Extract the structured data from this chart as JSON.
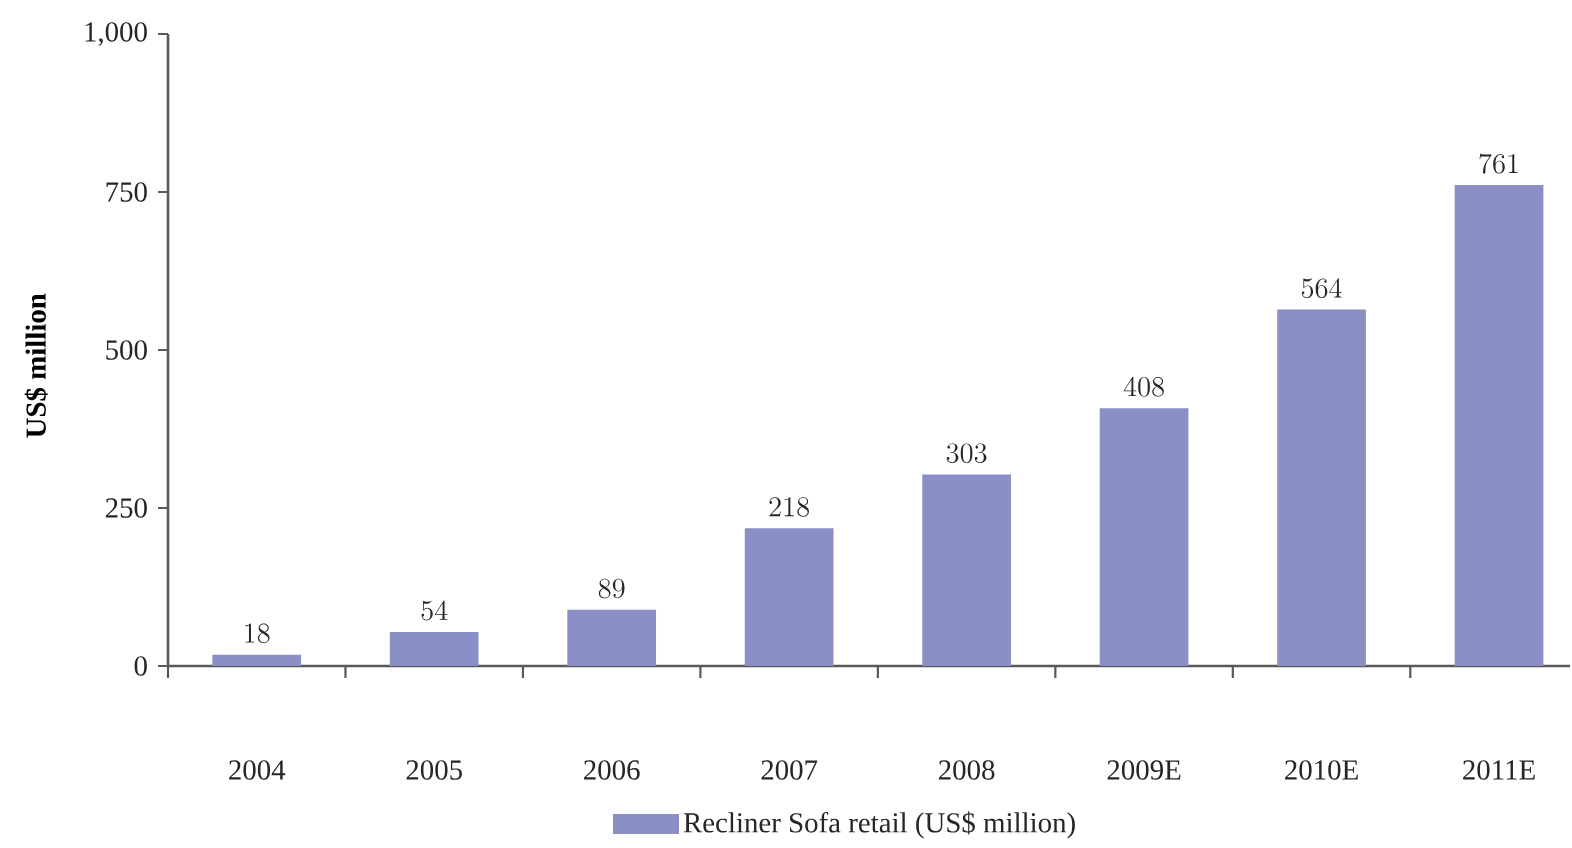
{
  "chart_data": {
    "type": "bar",
    "ylabel": "US$ million",
    "categories": [
      "2004",
      "2005",
      "2006",
      "2007",
      "2008",
      "2009E",
      "2010E",
      "2011E"
    ],
    "series": [
      {
        "name": "Recliner Sofa retail (US$ million)",
        "color": "#8a90c6",
        "values": [
          18,
          54,
          89,
          218,
          303,
          408,
          564,
          761
        ]
      }
    ],
    "ylim": [
      0,
      1000
    ],
    "yticks": [
      0,
      250,
      500,
      750,
      {
        "value": 1000,
        "label": "1,000"
      }
    ],
    "data_labels": true,
    "legend": "bottom"
  }
}
